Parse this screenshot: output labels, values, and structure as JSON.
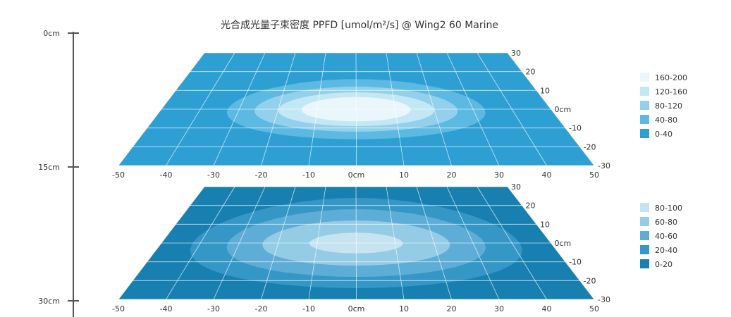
{
  "chart_data": {
    "type": "heatmap",
    "title": "光合成光量子束密度 PPFD [umol/m²/s] @ Wing2 60 Marine",
    "depth_axis": {
      "labels": [
        "0cm",
        "15cm",
        "30cm"
      ]
    },
    "x_ticks": [
      "-50",
      "-40",
      "-30",
      "-20",
      "-10",
      "0cm",
      "10",
      "20",
      "30",
      "40",
      "50"
    ],
    "y_ticks": [
      "30",
      "20",
      "10",
      "0cm",
      "-10",
      "-20",
      "-30"
    ],
    "x_range": [
      -50,
      50
    ],
    "y_range": [
      -30,
      30
    ],
    "planes": [
      {
        "depth": "0cm-15cm",
        "legend": [
          {
            "label": "160-200",
            "color": "#e9f6fc"
          },
          {
            "label": "120-160",
            "color": "#c4e7f6"
          },
          {
            "label": "80-120",
            "color": "#93d0ec"
          },
          {
            "label": "40-80",
            "color": "#5cb9e2"
          },
          {
            "label": "0-40",
            "color": "#2e9fd3"
          }
        ],
        "contours": [
          {
            "level": "0-40",
            "rx": 50,
            "ry": 30
          },
          {
            "level": "40-80",
            "rx": 33,
            "ry": 16
          },
          {
            "level": "80-120",
            "rx": 26,
            "ry": 12
          },
          {
            "level": "120-160",
            "rx": 20,
            "ry": 9
          },
          {
            "level": "160-200",
            "rx": 14,
            "ry": 6.5
          }
        ]
      },
      {
        "depth": "15cm-30cm",
        "legend": [
          {
            "label": "80-100",
            "color": "#c6e3f1"
          },
          {
            "label": "60-80",
            "color": "#94cbe5"
          },
          {
            "label": "40-60",
            "color": "#5dadd6"
          },
          {
            "label": "20-40",
            "color": "#3597c6"
          },
          {
            "label": "0-20",
            "color": "#1880b0"
          }
        ],
        "contours": [
          {
            "level": "0-20",
            "rx": 50,
            "ry": 30
          },
          {
            "level": "20-40",
            "rx": 42,
            "ry": 24
          },
          {
            "level": "40-60",
            "rx": 33,
            "ry": 18
          },
          {
            "level": "60-80",
            "rx": 24,
            "ry": 12
          },
          {
            "level": "80-100",
            "rx": 12,
            "ry": 5.5
          }
        ]
      }
    ]
  }
}
